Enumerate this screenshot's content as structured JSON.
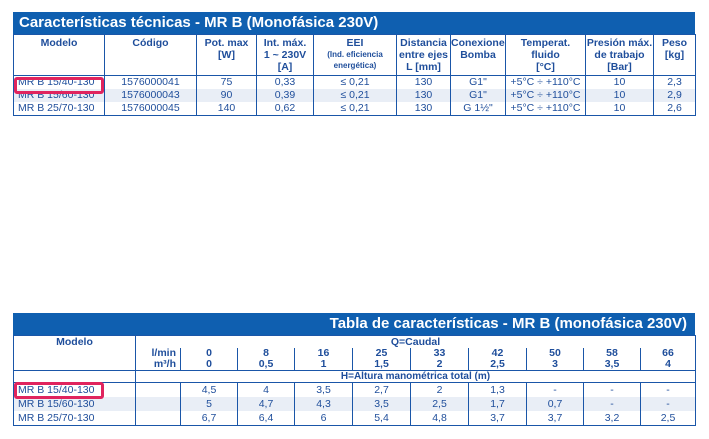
{
  "table1": {
    "title": "Características técnicas -  MR B (Monofásica 230V)",
    "headers": [
      {
        "line1": "Modelo",
        "line2": "",
        "line3": "",
        "note": ""
      },
      {
        "line1": "Código",
        "line2": "",
        "line3": "",
        "note": ""
      },
      {
        "line1": "Pot. max",
        "line2": "[W]",
        "line3": "",
        "note": ""
      },
      {
        "line1": "Int. máx.",
        "line2": "1 ~ 230V",
        "line3": "[A]",
        "note": ""
      },
      {
        "line1": "EEI",
        "line2": "",
        "line3": "",
        "note": "(Ind. eficiencia energética)"
      },
      {
        "line1": "Distancia",
        "line2": "entre ejes",
        "line3": "L [mm]",
        "note": ""
      },
      {
        "line1": "Conexiones",
        "line2": "Bomba",
        "line3": "",
        "note": ""
      },
      {
        "line1": "Temperat.",
        "line2": "fluido",
        "line3": "[°C]",
        "note": ""
      },
      {
        "line1": "Presión máx.",
        "line2": "de trabajo",
        "line3": "[Bar]",
        "note": ""
      },
      {
        "line1": "Peso",
        "line2": "[kg]",
        "line3": "",
        "note": ""
      }
    ],
    "rows": [
      [
        "MR B 15/40-130",
        "1576000041",
        "75",
        "0,33",
        "≤ 0,21",
        "130",
        "G1\"",
        "+5°C ÷ +110°C",
        "10",
        "2,3"
      ],
      [
        "MR B 15/60-130",
        "1576000043",
        "90",
        "0,39",
        "≤ 0,21",
        "130",
        "G1\"",
        "+5°C ÷ +110°C",
        "10",
        "2,9"
      ],
      [
        "MR B 25/70-130",
        "1576000045",
        "140",
        "0,62",
        "≤ 0,21",
        "130",
        "G 1½\"",
        "+5°C ÷ +110°C",
        "10",
        "2,6"
      ]
    ]
  },
  "table2": {
    "title": "Tabla de características - MR B (monofásica 230V)",
    "model_header": "Modelo",
    "q_header": "Q=Caudal",
    "unit_lmin": "l/min",
    "unit_m3h": "m³/h",
    "lmin": [
      "0",
      "8",
      "16",
      "25",
      "33",
      "42",
      "50",
      "58",
      "66"
    ],
    "m3h": [
      "0",
      "0,5",
      "1",
      "1,5",
      "2",
      "2,5",
      "3",
      "3,5",
      "4"
    ],
    "h_header": "H=Altura manométrica total (m)",
    "rows": [
      {
        "model": "MR B 15/40-130",
        "values": [
          "4,5",
          "4",
          "3,5",
          "2,7",
          "2",
          "1,3",
          "-",
          "-",
          "-"
        ]
      },
      {
        "model": "MR B 15/60-130",
        "values": [
          "5",
          "4,7",
          "4,3",
          "3,5",
          "2,5",
          "1,7",
          "0,7",
          "-",
          "-"
        ]
      },
      {
        "model": "MR B 25/70-130",
        "values": [
          "6,7",
          "6,4",
          "6",
          "5,4",
          "4,8",
          "3,7",
          "3,7",
          "3,2",
          "2,5"
        ]
      }
    ]
  },
  "colors": {
    "header_blue": "#0f5fb0",
    "text_blue": "#1f4e9b",
    "highlight": "#e0245e"
  }
}
